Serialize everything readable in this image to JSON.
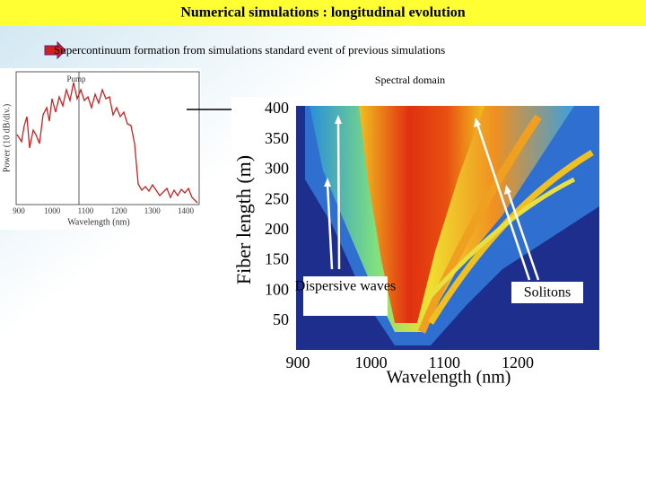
{
  "header": {
    "title": "Numerical simulations : longitudinal evolution"
  },
  "subtitle": "Supercontinuum formation from simulations  standard event of previous simulations",
  "spectral_label": "Spectral domain",
  "left_figure": {
    "annotation": "Pump",
    "y_label": "Power (10 dB/div.)",
    "x_label": "Wavelength (nm)",
    "xticks": [
      900,
      1000,
      1100,
      1200,
      1300,
      1400
    ]
  },
  "right_figure": {
    "y_label": "Fiber length (m)",
    "x_label": "Wavelength (nm)",
    "yticks": [
      50,
      100,
      150,
      200,
      250,
      300,
      350,
      400
    ],
    "xticks": [
      900,
      1000,
      1100,
      1200
    ],
    "annotations": [
      "Dispersive waves",
      "Solitons"
    ]
  }
}
